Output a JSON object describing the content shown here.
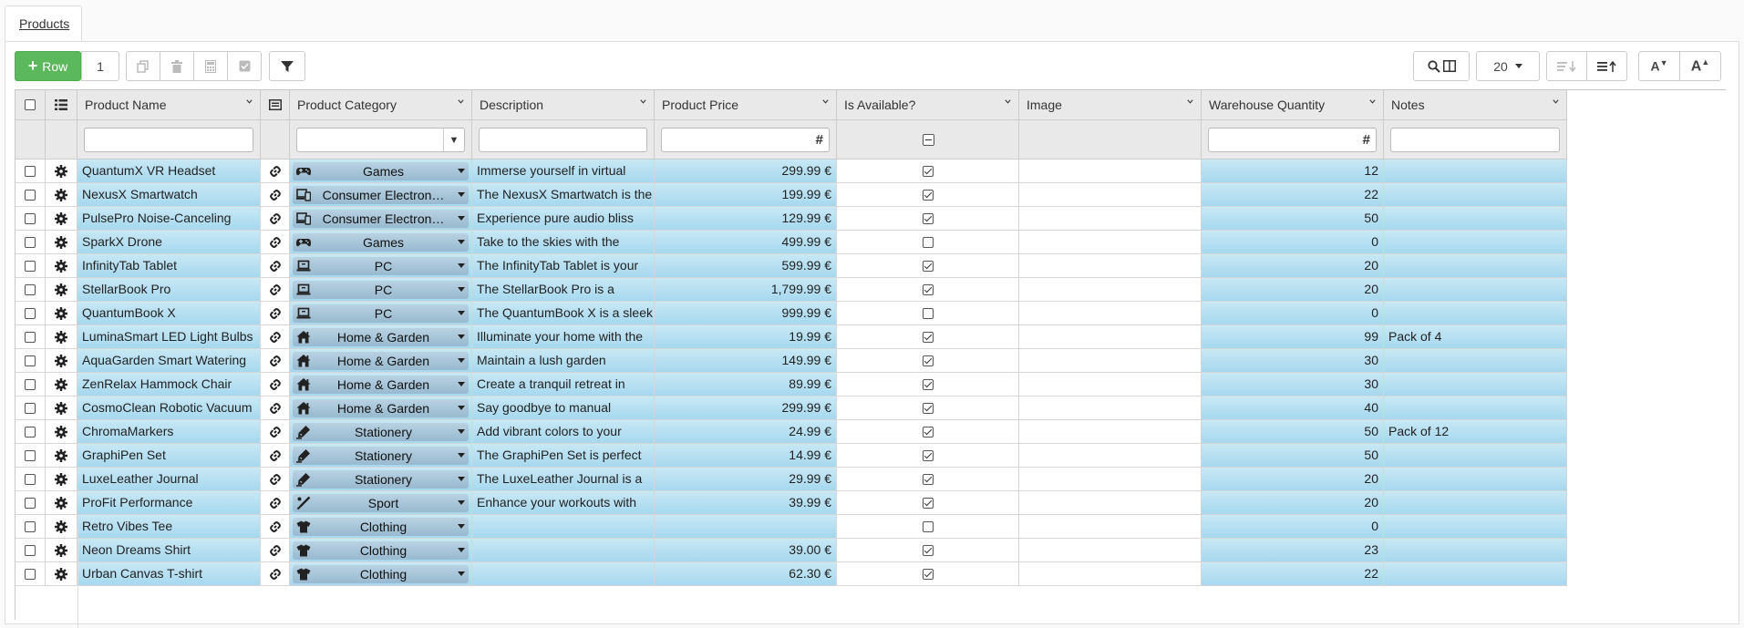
{
  "tab": {
    "label": "Products"
  },
  "toolbar": {
    "add_label": "Row",
    "add_count": "1",
    "page_size": "20"
  },
  "columns": {
    "product_name": "Product Name",
    "product_category": "Product Category",
    "description": "Description",
    "product_price": "Product Price",
    "is_available": "Is Available?",
    "image": "Image",
    "warehouse_quantity": "Warehouse Quantity",
    "notes": "Notes"
  },
  "filters": {
    "numeric_symbol": "#"
  },
  "rows": [
    {
      "name": "QuantumX VR Headset",
      "category": "Games",
      "icon": "gamepad-icon",
      "description": "Immerse yourself in virtual",
      "price": "299.99 €",
      "available": true,
      "quantity": "12",
      "notes": ""
    },
    {
      "name": "NexusX Smartwatch",
      "category": "Consumer Electron…",
      "icon": "devices-icon",
      "description": "The NexusX Smartwatch is the",
      "price": "199.99 €",
      "available": true,
      "quantity": "22",
      "notes": ""
    },
    {
      "name": "PulsePro Noise-Canceling",
      "category": "Consumer Electron…",
      "icon": "devices-icon",
      "description": "Experience pure audio bliss",
      "price": "129.99 €",
      "available": true,
      "quantity": "50",
      "notes": ""
    },
    {
      "name": "SparkX Drone",
      "category": "Games",
      "icon": "gamepad-icon",
      "description": "Take to the skies with the",
      "price": "499.99 €",
      "available": false,
      "quantity": "0",
      "notes": ""
    },
    {
      "name": "InfinityTab Tablet",
      "category": "PC",
      "icon": "laptop-icon",
      "description": "The InfinityTab Tablet is your",
      "price": "599.99 €",
      "available": true,
      "quantity": "20",
      "notes": ""
    },
    {
      "name": "StellarBook Pro",
      "category": "PC",
      "icon": "laptop-icon",
      "description": "The StellarBook Pro is a",
      "price": "1,799.99 €",
      "available": true,
      "quantity": "20",
      "notes": ""
    },
    {
      "name": "QuantumBook X",
      "category": "PC",
      "icon": "laptop-icon",
      "description": "The QuantumBook X is a sleek",
      "price": "999.99 €",
      "available": false,
      "quantity": "0",
      "notes": ""
    },
    {
      "name": "LuminaSmart LED Light Bulbs",
      "category": "Home & Garden",
      "icon": "house-icon",
      "description": "Illuminate your home with the",
      "price": "19.99 €",
      "available": true,
      "quantity": "99",
      "notes": "Pack of 4"
    },
    {
      "name": "AquaGarden Smart Watering",
      "category": "Home & Garden",
      "icon": "house-icon",
      "description": "Maintain a lush garden",
      "price": "149.99 €",
      "available": true,
      "quantity": "30",
      "notes": ""
    },
    {
      "name": "ZenRelax Hammock Chair",
      "category": "Home & Garden",
      "icon": "house-icon",
      "description": "Create a tranquil retreat in",
      "price": "89.99 €",
      "available": true,
      "quantity": "30",
      "notes": ""
    },
    {
      "name": "CosmoClean Robotic Vacuum",
      "category": "Home & Garden",
      "icon": "house-icon",
      "description": "Say goodbye to manual",
      "price": "299.99 €",
      "available": true,
      "quantity": "40",
      "notes": ""
    },
    {
      "name": "ChromaMarkers",
      "category": "Stationery",
      "icon": "pen-icon",
      "description": "Add vibrant colors to your",
      "price": "24.99 €",
      "available": true,
      "quantity": "50",
      "notes": "Pack of 12"
    },
    {
      "name": "GraphiPen Set",
      "category": "Stationery",
      "icon": "pen-icon",
      "description": "The GraphiPen Set is perfect",
      "price": "14.99 €",
      "available": true,
      "quantity": "50",
      "notes": ""
    },
    {
      "name": "LuxeLeather Journal",
      "category": "Stationery",
      "icon": "pen-icon",
      "description": "The LuxeLeather Journal is a",
      "price": "29.99 €",
      "available": true,
      "quantity": "20",
      "notes": ""
    },
    {
      "name": "ProFit Performance",
      "category": "Sport",
      "icon": "racket-icon",
      "description": "Enhance your workouts with",
      "price": "39.99 €",
      "available": true,
      "quantity": "20",
      "notes": ""
    },
    {
      "name": "Retro Vibes Tee",
      "category": "Clothing",
      "icon": "shirt-icon",
      "description": "",
      "price": "",
      "available": false,
      "quantity": "0",
      "notes": ""
    },
    {
      "name": "Neon Dreams Shirt",
      "category": "Clothing",
      "icon": "shirt-icon",
      "description": "",
      "price": "39.00 €",
      "available": true,
      "quantity": "23",
      "notes": ""
    },
    {
      "name": "Urban Canvas T-shirt",
      "category": "Clothing",
      "icon": "shirt-icon",
      "description": "",
      "price": "62.30 €",
      "available": true,
      "quantity": "22",
      "notes": ""
    }
  ]
}
